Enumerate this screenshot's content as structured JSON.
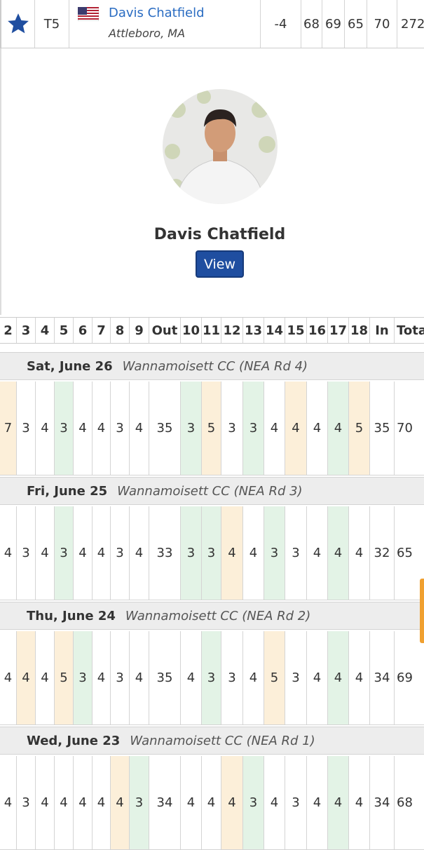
{
  "leaderboard_row": {
    "position": "T5",
    "name": "Davis Chatfield",
    "hometown": "Attleboro, MA",
    "to_par": "-4",
    "rounds": [
      68,
      69,
      65,
      70
    ],
    "total": 272
  },
  "profile": {
    "name": "Davis Chatfield",
    "button": "View"
  },
  "scorecard": {
    "columns": [
      "2",
      "3",
      "4",
      "5",
      "6",
      "7",
      "8",
      "9",
      "Out",
      "10",
      "11",
      "12",
      "13",
      "14",
      "15",
      "16",
      "17",
      "18",
      "In",
      "Total"
    ],
    "rounds": [
      {
        "date": "Sat, June 26",
        "course": "Wannamoisett CC (NEA Rd 4)",
        "scores": [
          7,
          3,
          4,
          3,
          4,
          4,
          3,
          4,
          35,
          3,
          5,
          3,
          3,
          4,
          4,
          4,
          4,
          5,
          35,
          70
        ],
        "colors": [
          "#fcefd9",
          null,
          null,
          "#e3f3e6",
          null,
          null,
          null,
          null,
          null,
          "#e3f3e6",
          "#fcefd9",
          null,
          "#e3f3e6",
          null,
          "#fcefd9",
          null,
          "#e3f3e6",
          "#fcefd9",
          null,
          null
        ]
      },
      {
        "date": "Fri, June 25",
        "course": "Wannamoisett CC (NEA Rd 3)",
        "scores": [
          4,
          3,
          4,
          3,
          4,
          4,
          3,
          4,
          33,
          3,
          3,
          4,
          4,
          3,
          3,
          4,
          4,
          4,
          32,
          65
        ],
        "colors": [
          null,
          null,
          null,
          "#e3f3e6",
          null,
          null,
          null,
          null,
          null,
          "#e3f3e6",
          "#e3f3e6",
          "#fcefd9",
          null,
          "#e3f3e6",
          null,
          null,
          "#e3f3e6",
          null,
          null,
          null
        ]
      },
      {
        "date": "Thu, June 24",
        "course": "Wannamoisett CC (NEA Rd 2)",
        "scores": [
          4,
          4,
          4,
          5,
          3,
          4,
          3,
          4,
          35,
          4,
          3,
          3,
          4,
          5,
          3,
          4,
          4,
          4,
          34,
          69
        ],
        "colors": [
          null,
          "#fcefd9",
          null,
          "#fcefd9",
          "#e3f3e6",
          null,
          null,
          null,
          null,
          null,
          "#e3f3e6",
          null,
          null,
          "#fcefd9",
          null,
          null,
          "#e3f3e6",
          null,
          null,
          null
        ]
      },
      {
        "date": "Wed, June 23",
        "course": "Wannamoisett CC (NEA Rd 1)",
        "scores": [
          4,
          3,
          4,
          4,
          4,
          4,
          4,
          3,
          34,
          4,
          4,
          4,
          3,
          4,
          3,
          4,
          4,
          4,
          34,
          68
        ],
        "colors": [
          null,
          null,
          null,
          null,
          null,
          null,
          "#fcefd9",
          "#e3f3e6",
          null,
          null,
          null,
          "#fcefd9",
          "#e3f3e6",
          null,
          null,
          null,
          "#e3f3e6",
          null,
          null,
          null
        ]
      }
    ]
  }
}
